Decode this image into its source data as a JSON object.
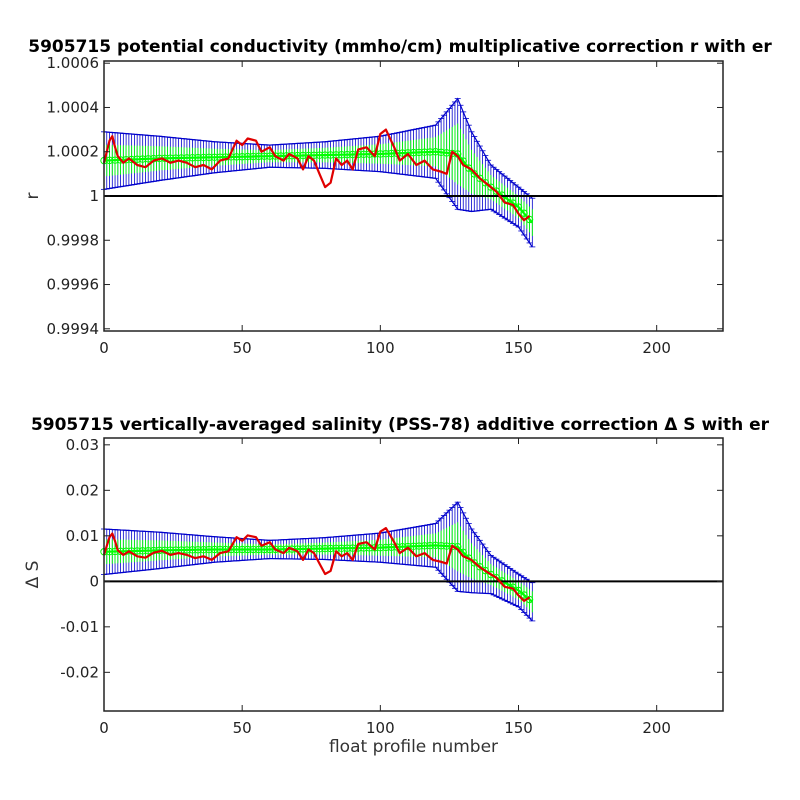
{
  "figure": {
    "background": "#ffffff",
    "colors": {
      "errorbar": "#0000cc",
      "fit": "#00ff00",
      "data": "#e00000",
      "reference": "#000000",
      "axes": "#222222"
    }
  },
  "chart_data": [
    {
      "type": "line",
      "title": "5905715 potential conductivity (mmho/cm) multiplicative correction r with er",
      "xlabel": "",
      "ylabel": "r",
      "xlim": [
        0,
        224
      ],
      "ylim": [
        0.99939,
        1.00061
      ],
      "xticks": [
        0,
        50,
        100,
        150,
        200
      ],
      "xtick_labels": [
        "0",
        "50",
        "100",
        "150",
        "200"
      ],
      "yticks": [
        0.9994,
        0.9996,
        0.9998,
        1.0,
        1.0002,
        1.0004,
        1.0006
      ],
      "ytick_labels": [
        "0.9994",
        "0.9996",
        "0.9998",
        "1",
        "1.0002",
        "1.0004",
        "1.0006"
      ],
      "reference_line": 1.0,
      "grid": false,
      "fit_band": {
        "x": [
          0,
          20,
          40,
          60,
          80,
          100,
          120,
          128,
          133,
          140,
          150,
          155
        ],
        "center": [
          1.00016,
          1.00017,
          1.000175,
          1.00018,
          1.000185,
          1.00019,
          1.0002,
          1.00019,
          1.00011,
          1.00004,
          0.99995,
          0.99988
        ],
        "error": [
          0.00013,
          0.0001,
          7e-05,
          5e-05,
          6e-05,
          8e-05,
          0.00012,
          0.00025,
          0.00018,
          0.0001,
          9e-05,
          0.00011
        ]
      },
      "series": [
        {
          "x": [
            0,
            1,
            2,
            3,
            4,
            5,
            7,
            9,
            12,
            15,
            18,
            21,
            24,
            27,
            30,
            33,
            36,
            39,
            42,
            45,
            48,
            50,
            52,
            55,
            57,
            60,
            62,
            65,
            67,
            70,
            72,
            74,
            76,
            78,
            80,
            82,
            84,
            86,
            88,
            90,
            92,
            95,
            98,
            100,
            102,
            105,
            107,
            110,
            113,
            116,
            119,
            122,
            124,
            126,
            128,
            130,
            133,
            136,
            139,
            142,
            145,
            148,
            150,
            152,
            154
          ],
          "values": [
            1.00015,
            1.0002,
            1.00025,
            1.00027,
            1.00022,
            1.00018,
            1.00015,
            1.00017,
            1.00014,
            1.00013,
            1.00016,
            1.00017,
            1.00015,
            1.00016,
            1.00015,
            1.00013,
            1.00014,
            1.00012,
            1.00016,
            1.00017,
            1.00025,
            1.00023,
            1.00026,
            1.00025,
            1.0002,
            1.00022,
            1.00018,
            1.00016,
            1.00019,
            1.00017,
            1.00012,
            1.00018,
            1.00016,
            1.0001,
            1.00004,
            1.00006,
            1.00017,
            1.00014,
            1.00016,
            1.00012,
            1.00021,
            1.00022,
            1.00018,
            1.00028,
            1.0003,
            1.00022,
            1.00016,
            1.00019,
            1.00014,
            1.00016,
            1.00012,
            1.00011,
            1.0001,
            1.0002,
            1.00018,
            1.00014,
            1.00012,
            1.00008,
            1.00005,
            1.00002,
            0.99997,
            0.99996,
            0.99992,
            0.99989,
            0.99991
          ]
        }
      ]
    },
    {
      "type": "line",
      "title": "5905715 vertically-averaged salinity (PSS-78) additive correction Δ S with er",
      "xlabel": "float profile number",
      "ylabel": "Δ S",
      "xlim": [
        0,
        224
      ],
      "ylim": [
        -0.0285,
        0.0315
      ],
      "xticks": [
        0,
        50,
        100,
        150,
        200
      ],
      "xtick_labels": [
        "0",
        "50",
        "100",
        "150",
        "200"
      ],
      "yticks": [
        -0.02,
        -0.01,
        0,
        0.01,
        0.02,
        0.03
      ],
      "ytick_labels": [
        "-0.02",
        "-0.01",
        "0",
        "0.01",
        "0.02",
        "0.03"
      ],
      "reference_line": 0,
      "grid": false,
      "fit_band": {
        "x": [
          0,
          20,
          40,
          60,
          80,
          100,
          120,
          128,
          133,
          140,
          150,
          155
        ],
        "center": [
          0.0065,
          0.0068,
          0.007,
          0.007,
          0.0072,
          0.0074,
          0.0079,
          0.0076,
          0.0045,
          0.0015,
          -0.002,
          -0.0045
        ],
        "error": [
          0.005,
          0.004,
          0.0028,
          0.002,
          0.0024,
          0.0032,
          0.0048,
          0.0098,
          0.007,
          0.0042,
          0.0036,
          0.0042
        ]
      },
      "series": [
        {
          "x": [
            0,
            1,
            2,
            3,
            4,
            5,
            7,
            9,
            12,
            15,
            18,
            21,
            24,
            27,
            30,
            33,
            36,
            39,
            42,
            45,
            48,
            50,
            52,
            55,
            57,
            60,
            62,
            65,
            67,
            70,
            72,
            74,
            76,
            78,
            80,
            82,
            84,
            86,
            88,
            90,
            92,
            95,
            98,
            100,
            102,
            105,
            107,
            110,
            113,
            116,
            119,
            122,
            124,
            126,
            128,
            130,
            133,
            136,
            139,
            142,
            145,
            148,
            150,
            152,
            154
          ],
          "values": [
            0.0058,
            0.0078,
            0.0097,
            0.0105,
            0.0088,
            0.0068,
            0.0058,
            0.0066,
            0.0055,
            0.0052,
            0.0063,
            0.0067,
            0.0058,
            0.0062,
            0.0058,
            0.0051,
            0.0055,
            0.0047,
            0.0062,
            0.0066,
            0.0097,
            0.0089,
            0.0101,
            0.0097,
            0.0078,
            0.0086,
            0.007,
            0.0062,
            0.0074,
            0.0066,
            0.0047,
            0.007,
            0.0062,
            0.0039,
            0.0016,
            0.0023,
            0.0066,
            0.0055,
            0.0062,
            0.0047,
            0.0082,
            0.0086,
            0.007,
            0.0109,
            0.0117,
            0.0086,
            0.0062,
            0.0074,
            0.0055,
            0.0062,
            0.0047,
            0.0043,
            0.0039,
            0.0078,
            0.007,
            0.0055,
            0.0047,
            0.0031,
            0.0019,
            0.0008,
            -0.0012,
            -0.0016,
            -0.0031,
            -0.0043,
            -0.0035
          ]
        }
      ]
    }
  ]
}
